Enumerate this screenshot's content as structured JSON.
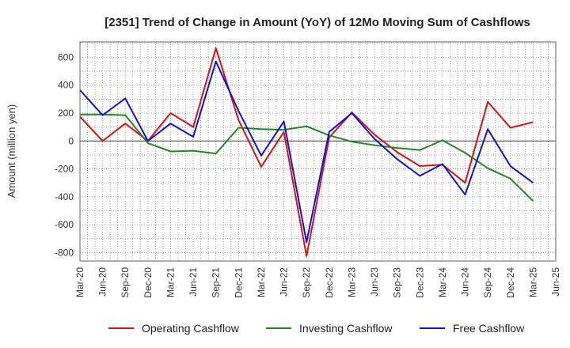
{
  "chart_data": {
    "type": "line",
    "title": "[2351]  Trend of Change in Amount (YoY) of 12Mo Moving Sum of Cashflows",
    "xlabel": "",
    "ylabel": "Amount (million yen)",
    "ylim": [
      -860,
      710
    ],
    "yticks": [
      600,
      400,
      200,
      0,
      -200,
      -400,
      -600,
      -800
    ],
    "grid": true,
    "legend_position": "bottom",
    "categories": [
      "Mar-20",
      "Jun-20",
      "Sep-20",
      "Dec-20",
      "Mar-21",
      "Jun-21",
      "Sep-21",
      "Dec-21",
      "Mar-22",
      "Jun-22",
      "Sep-22",
      "Dec-22",
      "Mar-23",
      "Jun-23",
      "Sep-23",
      "Dec-23",
      "Mar-24",
      "Jun-24",
      "Sep-24",
      "Dec-24",
      "Mar-25",
      "Jun-25"
    ],
    "series": [
      {
        "name": "Operating Cashflow",
        "color": "#dd1111",
        "values": [
          175,
          0,
          125,
          0,
          200,
          100,
          665,
          150,
          -185,
          65,
          -825,
          25,
          205,
          45,
          -80,
          -180,
          -170,
          -300,
          280,
          95,
          135,
          null
        ]
      },
      {
        "name": "Investing Cashflow",
        "color": "#228822",
        "values": [
          190,
          190,
          185,
          -15,
          -75,
          -70,
          -90,
          95,
          85,
          80,
          105,
          40,
          -5,
          -30,
          -50,
          -65,
          5,
          -85,
          -195,
          -270,
          -430,
          null
        ]
      },
      {
        "name": "Free Cashflow",
        "color": "#1111dd",
        "values": [
          365,
          185,
          305,
          0,
          125,
          30,
          570,
          215,
          -105,
          140,
          -725,
          65,
          200,
          15,
          -130,
          -250,
          -165,
          -385,
          85,
          -180,
          -300,
          null
        ]
      }
    ]
  }
}
